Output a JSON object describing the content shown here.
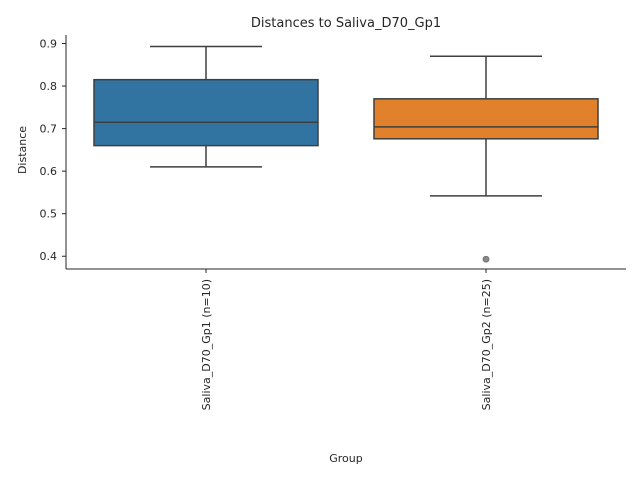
{
  "chart_data": {
    "type": "box",
    "title": "Distances to Saliva_D70_Gp1",
    "xlabel": "Group",
    "ylabel": "Distance",
    "ylim": [
      0.37,
      0.92
    ],
    "yticks": [
      0.4,
      0.5,
      0.6,
      0.7,
      0.8,
      0.9
    ],
    "ytick_labels": [
      "0.4",
      "0.5",
      "0.6",
      "0.7",
      "0.8",
      "0.9"
    ],
    "grid": false,
    "categories": [
      "Saliva_D70_Gp1 (n=10)",
      "Saliva_D70_Gp2 (n=25)"
    ],
    "boxes": [
      {
        "category": "Saliva_D70_Gp1 (n=10)",
        "whisker_low": 0.61,
        "q1": 0.66,
        "median": 0.715,
        "q3": 0.815,
        "whisker_high": 0.893,
        "outliers": [],
        "color": "#3274a1"
      },
      {
        "category": "Saliva_D70_Gp2 (n=25)",
        "whisker_low": 0.542,
        "q1": 0.676,
        "median": 0.704,
        "q3": 0.77,
        "whisker_high": 0.87,
        "outliers": [
          0.393
        ],
        "color": "#e1812c"
      }
    ],
    "line_color": "#3f3f3f",
    "outlier_color": "#888888"
  }
}
